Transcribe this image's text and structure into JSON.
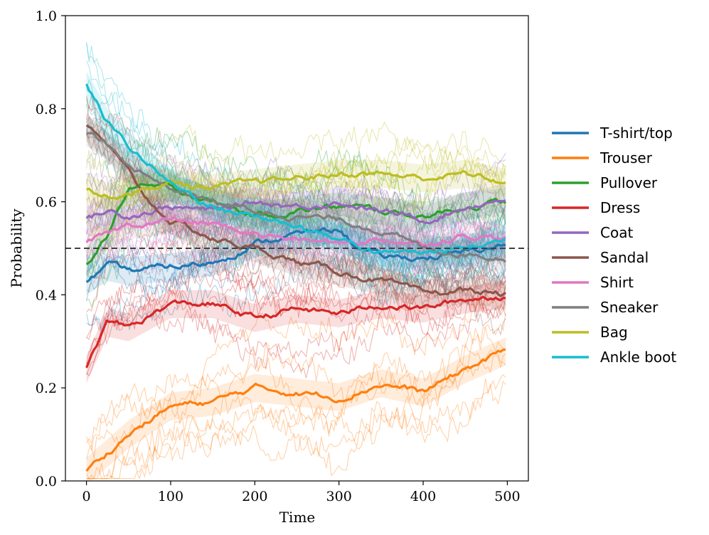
{
  "chart_data": {
    "type": "line",
    "title": "",
    "xlabel": "Time",
    "ylabel": "Probability",
    "xlim": [
      -25,
      525
    ],
    "ylim": [
      0.0,
      1.0
    ],
    "xticks": [
      0,
      100,
      200,
      300,
      400,
      500
    ],
    "xtick_labels": [
      "0",
      "100",
      "200",
      "300",
      "400",
      "500"
    ],
    "yticks": [
      0.0,
      0.2,
      0.4,
      0.6,
      0.8,
      1.0
    ],
    "ytick_labels": [
      "0.0",
      "0.2",
      "0.4",
      "0.6",
      "0.8",
      "1.0"
    ],
    "reference_line": {
      "y": 0.5,
      "style": "dashed",
      "color": "#404040"
    },
    "grid": false,
    "legend_position": "right",
    "background_traces": "many thin semi-transparent per-sample traces around each class mean, with shaded uncertainty bands",
    "series": [
      {
        "name": "T-shirt/top",
        "color": "#1f77b4",
        "x": [
          0,
          25,
          50,
          100,
          150,
          200,
          250,
          300,
          325,
          350,
          400,
          450,
          500
        ],
        "y": [
          0.43,
          0.46,
          0.45,
          0.46,
          0.47,
          0.51,
          0.53,
          0.54,
          0.5,
          0.48,
          0.48,
          0.49,
          0.51
        ]
      },
      {
        "name": "Trouser",
        "color": "#ff7f0e",
        "x": [
          0,
          25,
          50,
          100,
          150,
          200,
          250,
          300,
          350,
          400,
          450,
          500
        ],
        "y": [
          0.02,
          0.06,
          0.1,
          0.16,
          0.17,
          0.2,
          0.19,
          0.18,
          0.21,
          0.19,
          0.24,
          0.28
        ]
      },
      {
        "name": "Pullover",
        "color": "#2ca02c",
        "x": [
          0,
          25,
          50,
          100,
          150,
          200,
          250,
          300,
          350,
          400,
          450,
          500
        ],
        "y": [
          0.47,
          0.53,
          0.63,
          0.63,
          0.6,
          0.57,
          0.58,
          0.59,
          0.58,
          0.57,
          0.59,
          0.6
        ]
      },
      {
        "name": "Dress",
        "color": "#d62728",
        "x": [
          0,
          25,
          50,
          100,
          150,
          200,
          250,
          300,
          350,
          400,
          450,
          500
        ],
        "y": [
          0.24,
          0.34,
          0.33,
          0.38,
          0.38,
          0.35,
          0.37,
          0.36,
          0.38,
          0.37,
          0.39,
          0.4
        ]
      },
      {
        "name": "Coat",
        "color": "#9467bd",
        "x": [
          0,
          25,
          50,
          100,
          150,
          200,
          250,
          300,
          350,
          400,
          450,
          500
        ],
        "y": [
          0.56,
          0.58,
          0.57,
          0.59,
          0.58,
          0.6,
          0.59,
          0.6,
          0.58,
          0.56,
          0.59,
          0.61
        ]
      },
      {
        "name": "Sandal",
        "color": "#8c564b",
        "x": [
          0,
          25,
          50,
          75,
          100,
          150,
          200,
          250,
          300,
          350,
          400,
          450,
          500
        ],
        "y": [
          0.76,
          0.72,
          0.66,
          0.6,
          0.56,
          0.52,
          0.5,
          0.47,
          0.45,
          0.43,
          0.4,
          0.41,
          0.4
        ]
      },
      {
        "name": "Shirt",
        "color": "#e377c2",
        "x": [
          0,
          25,
          50,
          100,
          150,
          200,
          250,
          300,
          350,
          400,
          450,
          500
        ],
        "y": [
          0.51,
          0.53,
          0.55,
          0.56,
          0.55,
          0.53,
          0.52,
          0.51,
          0.52,
          0.51,
          0.53,
          0.52
        ]
      },
      {
        "name": "Sneaker",
        "color": "#7f7f7f",
        "x": [
          0,
          25,
          50,
          100,
          150,
          200,
          250,
          300,
          350,
          400,
          450,
          500
        ],
        "y": [
          0.75,
          0.72,
          0.68,
          0.63,
          0.6,
          0.58,
          0.57,
          0.56,
          0.54,
          0.5,
          0.49,
          0.48
        ]
      },
      {
        "name": "Bag",
        "color": "#bcbd22",
        "x": [
          0,
          25,
          50,
          100,
          150,
          200,
          250,
          300,
          350,
          400,
          450,
          500
        ],
        "y": [
          0.63,
          0.61,
          0.62,
          0.64,
          0.63,
          0.64,
          0.65,
          0.66,
          0.66,
          0.65,
          0.66,
          0.64
        ]
      },
      {
        "name": "Ankle boot",
        "color": "#17becf",
        "x": [
          0,
          25,
          50,
          75,
          100,
          150,
          200,
          250,
          300,
          350,
          400,
          450,
          500
        ],
        "y": [
          0.85,
          0.77,
          0.72,
          0.68,
          0.64,
          0.59,
          0.57,
          0.55,
          0.52,
          0.49,
          0.49,
          0.5,
          0.52
        ]
      }
    ]
  }
}
